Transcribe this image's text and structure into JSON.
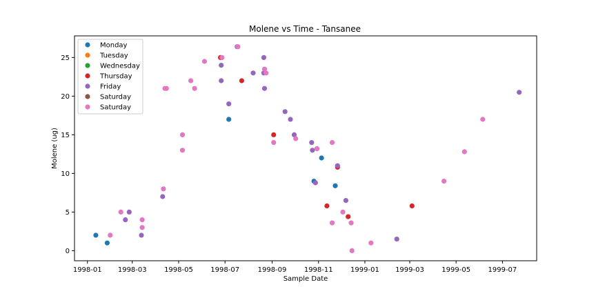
{
  "chart_data": {
    "type": "scatter",
    "title": "Molene vs Time - Tansanee",
    "xlabel": "Sample Date",
    "ylabel": "Molene (ug)",
    "xlim": [
      "1997-12-15",
      "1999-08-15"
    ],
    "ylim": [
      -1.3,
      27.8
    ],
    "x_ticks": [
      "1998-01",
      "1998-03",
      "1998-05",
      "1998-07",
      "1998-09",
      "1998-11",
      "1999-01",
      "1999-03",
      "1999-05",
      "1999-07"
    ],
    "y_ticks": [
      0,
      5,
      10,
      15,
      20,
      25
    ],
    "grid": false,
    "legend_position": "top-left",
    "series": [
      {
        "name": "Monday",
        "color": "#1f77b4",
        "points": [
          {
            "x": "1998-01-12",
            "y": 2
          },
          {
            "x": "1998-01-27",
            "y": 1
          },
          {
            "x": "1998-07-06",
            "y": 17
          },
          {
            "x": "1998-10-26",
            "y": 9
          },
          {
            "x": "1998-11-05",
            "y": 12
          },
          {
            "x": "1998-11-23",
            "y": 8.4
          }
        ]
      },
      {
        "name": "Tuesday",
        "color": "#ff7f0e",
        "points": []
      },
      {
        "name": "Wednesday",
        "color": "#2ca02c",
        "points": []
      },
      {
        "name": "Thursday",
        "color": "#d62728",
        "points": [
          {
            "x": "1998-06-25",
            "y": 25
          },
          {
            "x": "1998-07-23",
            "y": 22
          },
          {
            "x": "1998-09-03",
            "y": 15
          },
          {
            "x": "1998-11-12",
            "y": 5.8
          },
          {
            "x": "1998-11-26",
            "y": 10.8
          },
          {
            "x": "1998-12-10",
            "y": 4.4
          },
          {
            "x": "1999-03-04",
            "y": 5.8
          }
        ]
      },
      {
        "name": "Friday",
        "color": "#9467bd",
        "points": [
          {
            "x": "1998-02-20",
            "y": 4
          },
          {
            "x": "1998-02-25",
            "y": 5
          },
          {
            "x": "1998-03-13",
            "y": 2
          },
          {
            "x": "1998-04-10",
            "y": 7
          },
          {
            "x": "1998-06-26",
            "y": 24
          },
          {
            "x": "1998-06-26",
            "y": 22
          },
          {
            "x": "1998-07-06",
            "y": 19
          },
          {
            "x": "1998-07-17",
            "y": 26.4
          },
          {
            "x": "1998-08-07",
            "y": 23
          },
          {
            "x": "1998-08-21",
            "y": 25
          },
          {
            "x": "1998-08-21",
            "y": 23
          },
          {
            "x": "1998-08-22",
            "y": 21
          },
          {
            "x": "1998-09-18",
            "y": 18
          },
          {
            "x": "1998-09-25",
            "y": 17
          },
          {
            "x": "1998-09-30",
            "y": 15
          },
          {
            "x": "1998-10-23",
            "y": 14
          },
          {
            "x": "1998-10-24",
            "y": 13
          },
          {
            "x": "1998-10-30",
            "y": 13.2
          },
          {
            "x": "1998-10-28",
            "y": 8.8
          },
          {
            "x": "1998-11-26",
            "y": 11
          },
          {
            "x": "1998-12-07",
            "y": 6.5
          },
          {
            "x": "1999-02-12",
            "y": 1.5
          },
          {
            "x": "1999-07-23",
            "y": 20.5
          }
        ]
      },
      {
        "name": "Saturday",
        "color": "#8c564b",
        "points": []
      },
      {
        "name": "Saturday",
        "color": "#e377c2",
        "points": [
          {
            "x": "1998-01-31",
            "y": 2
          },
          {
            "x": "1998-02-14",
            "y": 5
          },
          {
            "x": "1998-03-14",
            "y": 4
          },
          {
            "x": "1998-03-14",
            "y": 3
          },
          {
            "x": "1998-04-11",
            "y": 8
          },
          {
            "x": "1998-04-13",
            "y": 21
          },
          {
            "x": "1998-04-15",
            "y": 21
          },
          {
            "x": "1998-05-06",
            "y": 15
          },
          {
            "x": "1998-05-06",
            "y": 13
          },
          {
            "x": "1998-05-17",
            "y": 22
          },
          {
            "x": "1998-05-22",
            "y": 21
          },
          {
            "x": "1998-06-04",
            "y": 24.5
          },
          {
            "x": "1998-06-27",
            "y": 25
          },
          {
            "x": "1998-07-18",
            "y": 26.4
          },
          {
            "x": "1998-08-22",
            "y": 23.5
          },
          {
            "x": "1998-08-24",
            "y": 23
          },
          {
            "x": "1998-09-03",
            "y": 14
          },
          {
            "x": "1998-10-02",
            "y": 14.5
          },
          {
            "x": "1998-10-30",
            "y": 13.2
          },
          {
            "x": "1998-11-19",
            "y": 14
          },
          {
            "x": "1998-11-19",
            "y": 3.6
          },
          {
            "x": "1998-12-03",
            "y": 5
          },
          {
            "x": "1998-12-14",
            "y": 3.6
          },
          {
            "x": "1998-12-15",
            "y": 0
          },
          {
            "x": "1999-01-09",
            "y": 1
          },
          {
            "x": "1999-04-15",
            "y": 9
          },
          {
            "x": "1999-05-12",
            "y": 12.8
          },
          {
            "x": "1999-06-05",
            "y": 17
          }
        ]
      }
    ]
  }
}
